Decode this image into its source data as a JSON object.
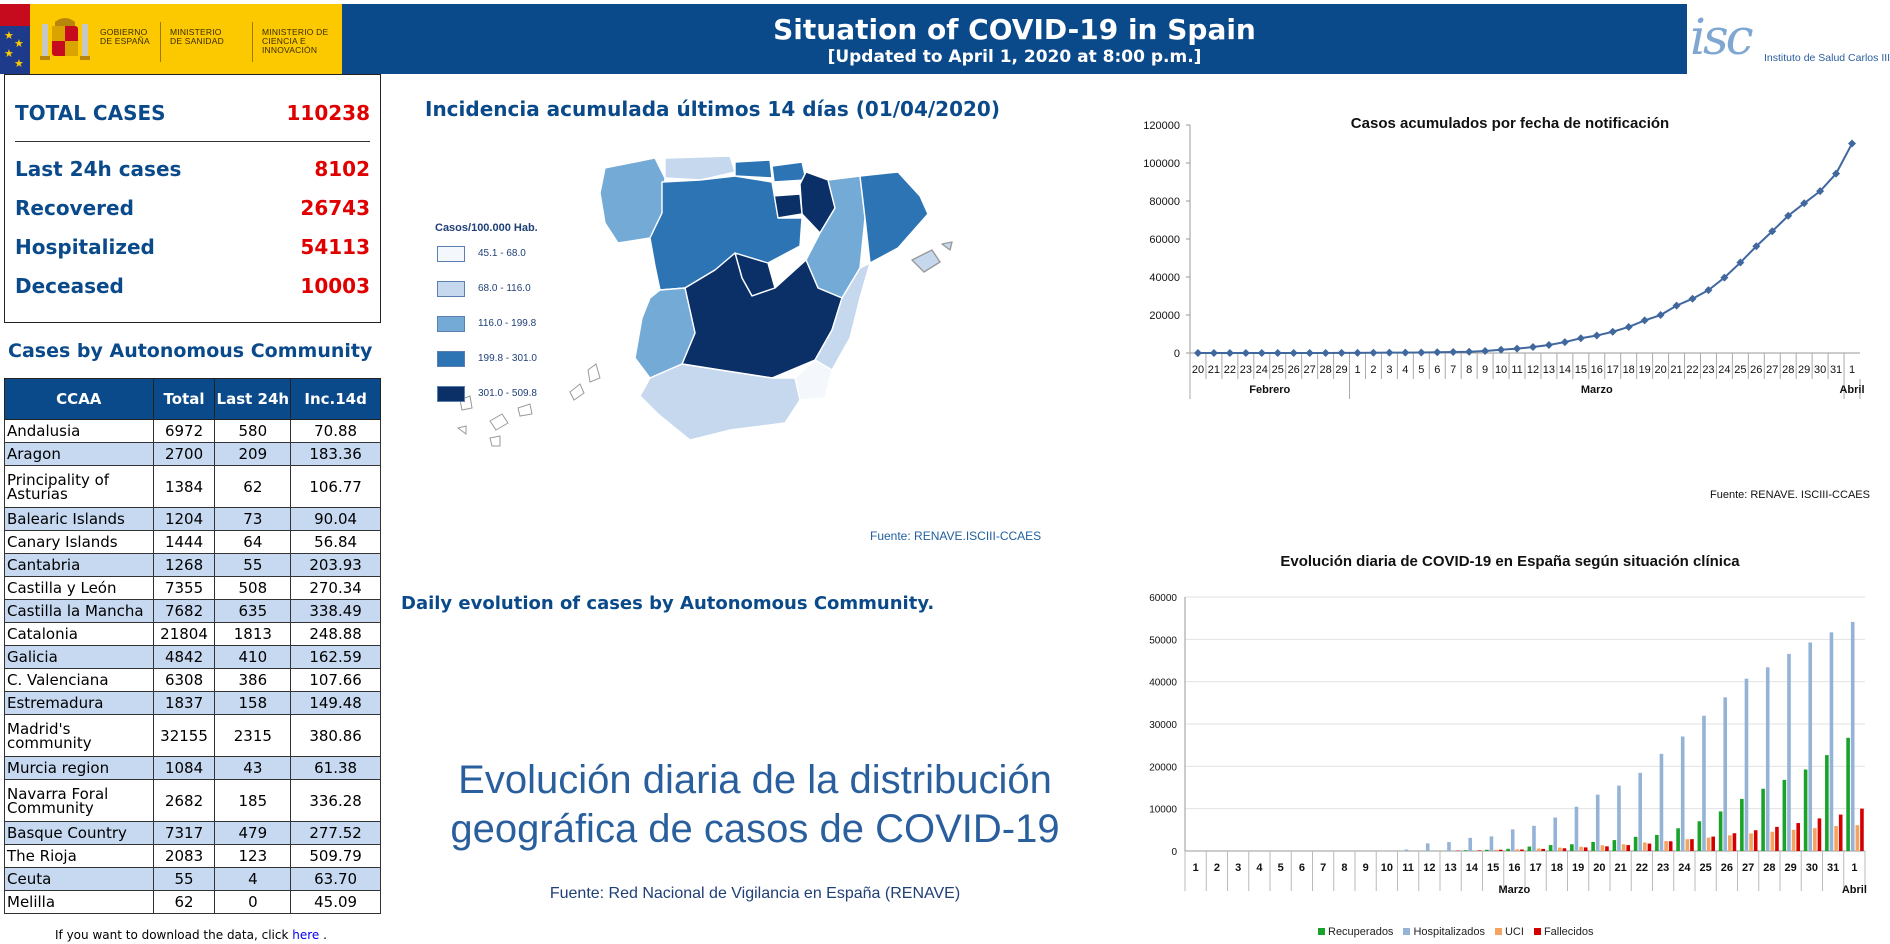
{
  "header": {
    "gov_labels": [
      "GOBIERNO DE ESPAÑA",
      "MINISTERIO DE SANIDAD",
      "MINISTERIO DE CIENCIA E INNOVACIÓN"
    ],
    "title": "Situation of COVID-19 in Spain",
    "subtitle": "[Updated to April 1, 2020 at 8:00 p.m.]",
    "institute": "Instituto de Salud Carlos III",
    "institute_mark": "isc"
  },
  "summary": {
    "total_label": "TOTAL CASES",
    "total_value": "110238",
    "last24_label": "Last 24h cases",
    "last24_value": "8102",
    "recovered_label": "Recovered",
    "recovered_value": "26743",
    "hospitalized_label": "Hospitalized",
    "hospitalized_value": "54113",
    "deceased_label": "Deceased",
    "deceased_value": "10003"
  },
  "table": {
    "title": "Cases by Autonomous Community",
    "headers": [
      "CCAA",
      "Total",
      "Last 24h",
      "Inc.14d"
    ],
    "rows": [
      [
        "Andalusia",
        "6972",
        "580",
        "70.88"
      ],
      [
        "Aragon",
        "2700",
        "209",
        "183.36"
      ],
      [
        "Principality of Asturias",
        "1384",
        "62",
        "106.77"
      ],
      [
        "Balearic Islands",
        "1204",
        "73",
        "90.04"
      ],
      [
        "Canary Islands",
        "1444",
        "64",
        "56.84"
      ],
      [
        "Cantabria",
        "1268",
        "55",
        "203.93"
      ],
      [
        "Castilla y León",
        "7355",
        "508",
        "270.34"
      ],
      [
        "Castilla la Mancha",
        "7682",
        "635",
        "338.49"
      ],
      [
        "Catalonia",
        "21804",
        "1813",
        "248.88"
      ],
      [
        "Galicia",
        "4842",
        "410",
        "162.59"
      ],
      [
        "C. Valenciana",
        "6308",
        "386",
        "107.66"
      ],
      [
        "Estremadura",
        "1837",
        "158",
        "149.48"
      ],
      [
        "Madrid's community",
        "32155",
        "2315",
        "380.86"
      ],
      [
        "Murcia region",
        "1084",
        "43",
        "61.38"
      ],
      [
        "Navarra Foral Community",
        "2682",
        "185",
        "336.28"
      ],
      [
        "Basque Country",
        "7317",
        "479",
        "277.52"
      ],
      [
        "The Rioja",
        "2083",
        "123",
        "509.79"
      ],
      [
        "Ceuta",
        "55",
        "4",
        "63.70"
      ],
      [
        "Melilla",
        "62",
        "0",
        "45.09"
      ]
    ]
  },
  "download": {
    "prefix": "If you want to download the data, click ",
    "link": "here",
    "suffix": " ."
  },
  "map": {
    "title": "Incidencia acumulada últimos 14 días (01/04/2020)",
    "legend_title": "Casos/100.000 Hab.",
    "legend": [
      {
        "label": "45.1 - 68.0",
        "color": "#f4f7fc"
      },
      {
        "label": "68.0 - 116.0",
        "color": "#c6d8ee"
      },
      {
        "label": "116.0 - 199.8",
        "color": "#74aad6"
      },
      {
        "label": "199.8 - 301.0",
        "color": "#2d74b5"
      },
      {
        "label": "301.0 - 509.8",
        "color": "#0b3068"
      }
    ],
    "source": "Fuente: RENAVE.ISCIII-CCAES"
  },
  "daily": {
    "title": "Daily evolution of cases by Autonomous Community.",
    "big_title": "Evolución diaria de la distribución geográfica de casos de COVID-19",
    "source": "Fuente: Red Nacional de Vigilancia en España (RENAVE)"
  },
  "chart_data": [
    {
      "type": "line",
      "title": "Casos acumulados por fecha de notificación",
      "x": [
        "20",
        "21",
        "22",
        "23",
        "24",
        "25",
        "26",
        "27",
        "28",
        "29",
        "1",
        "2",
        "3",
        "4",
        "5",
        "6",
        "7",
        "8",
        "9",
        "10",
        "11",
        "12",
        "13",
        "14",
        "15",
        "16",
        "17",
        "18",
        "19",
        "20",
        "21",
        "22",
        "23",
        "24",
        "25",
        "26",
        "27",
        "28",
        "29",
        "30",
        "31",
        "1"
      ],
      "groups": [
        {
          "label": "Febrero",
          "from": 0,
          "to": 9
        },
        {
          "label": "Marzo",
          "from": 10,
          "to": 40
        },
        {
          "label": "Abril",
          "from": 41,
          "to": 41
        }
      ],
      "ylim": [
        0,
        120000
      ],
      "yticks": [
        0,
        20000,
        40000,
        60000,
        80000,
        100000,
        120000
      ],
      "series": [
        {
          "values": [
            2,
            2,
            2,
            2,
            3,
            4,
            12,
            17,
            32,
            45,
            84,
            120,
            165,
            222,
            259,
            400,
            500,
            673,
            1073,
            1695,
            2277,
            3146,
            4231,
            5753,
            7753,
            9191,
            11178,
            13716,
            17147,
            19980,
            24926,
            28572,
            33089,
            39673,
            47610,
            56188,
            64059,
            72248,
            78797,
            85195,
            94417,
            110238
          ],
          "color": "#41689e"
        }
      ],
      "source": "Fuente: RENAVE. ISCIII-CCAES"
    },
    {
      "type": "bar",
      "title": "Evolución diaria de COVID-19 en España según situación clínica",
      "x": [
        "1",
        "2",
        "3",
        "4",
        "5",
        "6",
        "7",
        "8",
        "9",
        "10",
        "11",
        "12",
        "13",
        "14",
        "15",
        "16",
        "17",
        "18",
        "19",
        "20",
        "21",
        "22",
        "23",
        "24",
        "25",
        "26",
        "27",
        "28",
        "29",
        "30",
        "31",
        "1"
      ],
      "groups": [
        {
          "label": "Marzo",
          "from": 0,
          "to": 30
        },
        {
          "label": "Abril",
          "from": 31,
          "to": 31
        }
      ],
      "ylim": [
        0,
        60000
      ],
      "yticks": [
        0,
        10000,
        20000,
        30000,
        40000,
        50000,
        60000
      ],
      "series": [
        {
          "name": "Recuperados",
          "color": "#1aa32a",
          "values": [
            0,
            0,
            0,
            0,
            0,
            0,
            0,
            0,
            0,
            0,
            0,
            0,
            0,
            180,
            290,
            520,
            1050,
            1400,
            1590,
            2130,
            2580,
            3350,
            3800,
            5370,
            7020,
            9350,
            12300,
            14700,
            16800,
            19250,
            22650,
            26743
          ]
        },
        {
          "name": "Hospitalizados",
          "color": "#95b3d7",
          "values": [
            0,
            0,
            0,
            0,
            0,
            0,
            0,
            0,
            0,
            0,
            350,
            1800,
            2100,
            3100,
            3450,
            5100,
            5950,
            7900,
            10450,
            13300,
            15450,
            18450,
            22950,
            27050,
            31950,
            36300,
            40700,
            43400,
            46550,
            49250,
            51650,
            54113
          ]
        },
        {
          "name": "UCI",
          "color": "#f4a460",
          "values": [
            0,
            0,
            0,
            0,
            0,
            0,
            0,
            0,
            0,
            0,
            0,
            0,
            0,
            0,
            300,
            400,
            600,
            800,
            1000,
            1350,
            1600,
            2000,
            2350,
            2800,
            3150,
            3700,
            4150,
            4550,
            5000,
            5400,
            5900,
            6100
          ]
        },
        {
          "name": "Fallecidos",
          "color": "#d40000",
          "values": [
            0,
            0,
            0,
            0,
            0,
            0,
            0,
            0,
            0,
            0,
            0,
            0,
            100,
            150,
            300,
            350,
            500,
            650,
            850,
            1100,
            1400,
            1750,
            2300,
            2800,
            3400,
            4200,
            4900,
            5700,
            6600,
            7700,
            8600,
            10003
          ]
        }
      ]
    }
  ]
}
